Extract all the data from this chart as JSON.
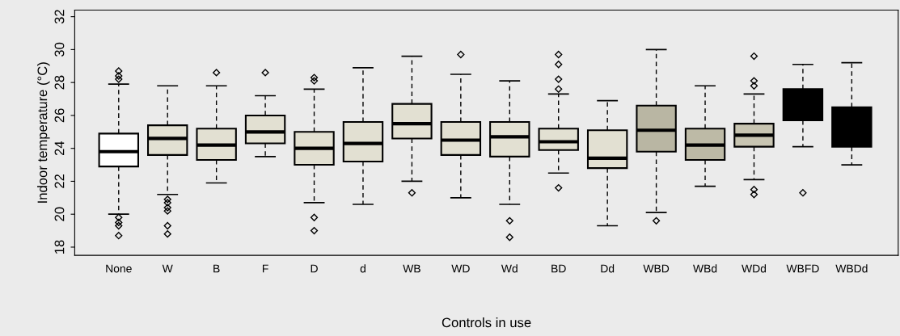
{
  "chart_data": {
    "type": "box",
    "xlabel": "Controls in use",
    "ylabel": "Indoor temperature (°C)",
    "categories": [
      "None",
      "W",
      "B",
      "F",
      "D",
      "d",
      "WB",
      "WD",
      "Wd",
      "BD",
      "Dd",
      "WBD",
      "WBd",
      "WDd",
      "WBFD",
      "WBDd"
    ],
    "colors": [
      "#ffffff",
      "#e2e0d2",
      "#e2e0d2",
      "#e2e0d2",
      "#e2e0d2",
      "#e2e0d2",
      "#e2e0d2",
      "#e2e0d2",
      "#e2e0d2",
      "#e2e0d2",
      "#e2e0d2",
      "#b9b6a3",
      "#bdbaa6",
      "#c8c5b2",
      "#000000",
      "#000000"
    ],
    "boxes": [
      {
        "low": 20.0,
        "q1": 22.9,
        "median": 23.8,
        "q3": 24.9,
        "high": 27.9,
        "outliers": [
          28.2,
          28.4,
          28.7,
          19.8,
          19.5,
          19.3,
          18.7
        ]
      },
      {
        "low": 21.2,
        "q1": 23.6,
        "median": 24.6,
        "q3": 25.4,
        "high": 27.8,
        "outliers": [
          20.9,
          20.7,
          20.4,
          20.2,
          19.3,
          18.8
        ]
      },
      {
        "low": 21.9,
        "q1": 23.3,
        "median": 24.2,
        "q3": 25.2,
        "high": 27.8,
        "outliers": [
          28.6
        ]
      },
      {
        "low": 23.5,
        "q1": 24.3,
        "median": 25.0,
        "q3": 26.0,
        "high": 27.2,
        "outliers": [
          28.6
        ]
      },
      {
        "low": 20.7,
        "q1": 23.0,
        "median": 24.0,
        "q3": 25.0,
        "high": 27.6,
        "outliers": [
          28.1,
          28.3,
          19.8,
          19.0
        ]
      },
      {
        "low": 20.6,
        "q1": 23.2,
        "median": 24.3,
        "q3": 25.6,
        "high": 28.9
      },
      {
        "low": 22.0,
        "q1": 24.6,
        "median": 25.5,
        "q3": 26.7,
        "high": 29.6,
        "outliers": [
          21.3
        ]
      },
      {
        "low": 21.0,
        "q1": 23.6,
        "median": 24.5,
        "q3": 25.6,
        "high": 28.5,
        "outliers": [
          29.7
        ]
      },
      {
        "low": 20.6,
        "q1": 23.5,
        "median": 24.7,
        "q3": 25.6,
        "high": 28.1,
        "outliers": [
          19.6,
          18.6
        ]
      },
      {
        "low": 22.5,
        "q1": 23.9,
        "median": 24.4,
        "q3": 25.2,
        "high": 27.3,
        "outliers": [
          29.7,
          29.1,
          28.2,
          27.6,
          21.6
        ]
      },
      {
        "low": 19.3,
        "q1": 22.8,
        "median": 23.4,
        "q3": 25.1,
        "high": 26.9
      },
      {
        "low": 20.1,
        "q1": 23.8,
        "median": 25.1,
        "q3": 26.6,
        "high": 30.0,
        "outliers": [
          19.6
        ]
      },
      {
        "low": 21.7,
        "q1": 23.3,
        "median": 24.2,
        "q3": 25.2,
        "high": 27.8
      },
      {
        "low": 22.1,
        "q1": 24.1,
        "median": 24.8,
        "q3": 25.5,
        "high": 27.3,
        "outliers": [
          29.6,
          28.1,
          27.8,
          21.5,
          21.2
        ]
      },
      {
        "low": 24.1,
        "q1": 25.7,
        "median": 26.5,
        "q3": 27.6,
        "high": 29.1,
        "outliers": [
          21.3
        ]
      },
      {
        "low": 23.0,
        "q1": 24.1,
        "median": 25.5,
        "q3": 26.5,
        "high": 29.2
      }
    ],
    "ylim": [
      17.5,
      32.4
    ],
    "yticks": [
      18,
      20,
      22,
      24,
      26,
      28,
      30,
      32
    ],
    "grid": false,
    "legend": false
  }
}
